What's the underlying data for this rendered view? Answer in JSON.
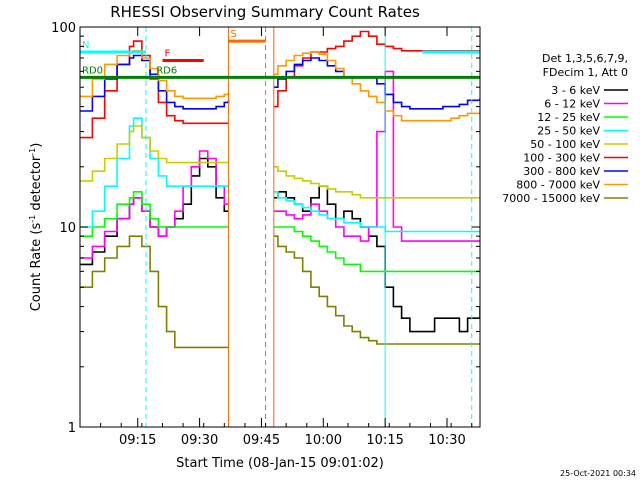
{
  "chart_data": {
    "type": "line",
    "title": "RHESSI Observing Summary Count Rates",
    "xlabel": "Start Time (08-Jan-15 09:01:02)",
    "ylabel": "Count Rate (s",
    "ylabel_sup": "-1",
    "ylabel_tail": " detector",
    "ylabel_close": ")",
    "yscale": "log",
    "ylim": [
      1,
      100
    ],
    "xlim_minutes": [
      0,
      97
    ],
    "x_ticks": [
      {
        "label": "09:15",
        "minute": 14
      },
      {
        "label": "09:30",
        "minute": 29
      },
      {
        "label": "09:45",
        "minute": 44
      },
      {
        "label": "10:00",
        "minute": 59
      },
      {
        "label": "10:15",
        "minute": 74
      },
      {
        "label": "10:30",
        "minute": 89
      }
    ],
    "y_ticks": [
      {
        "label": "1",
        "value": 1
      },
      {
        "label": "10",
        "value": 10
      },
      {
        "label": "100",
        "value": 100
      }
    ],
    "legend_header": [
      "Det 1,3,5,6,7,9,",
      "FDecim 1, Att 0"
    ],
    "data_gaps_minutes": [
      [
        36,
        47
      ]
    ],
    "series": [
      {
        "name": "3 - 6 keV",
        "color": "#000000",
        "x": [
          0,
          3,
          6,
          9,
          12,
          13,
          15,
          17,
          19,
          21,
          23,
          25,
          27,
          29,
          31,
          33,
          35,
          36,
          47,
          48,
          50,
          52,
          54,
          56,
          58,
          60,
          62,
          64,
          66,
          68,
          70,
          72,
          74,
          76,
          78,
          80,
          82,
          84,
          86,
          88,
          90,
          92,
          94,
          97
        ],
        "values": [
          6.5,
          7.5,
          9,
          11,
          13,
          14,
          12,
          10,
          9,
          10,
          11,
          13,
          18,
          22,
          20,
          14,
          12,
          12,
          14,
          15,
          14,
          13,
          12,
          14,
          16,
          13,
          11,
          12,
          11,
          10,
          9,
          8,
          5,
          4,
          3.5,
          3,
          3,
          3,
          3.5,
          3.5,
          3.5,
          3,
          3.5,
          4
        ]
      },
      {
        "name": "6 - 12 keV",
        "color": "#ff00ff",
        "x": [
          0,
          3,
          6,
          9,
          12,
          13,
          15,
          17,
          19,
          21,
          23,
          25,
          27,
          29,
          31,
          33,
          35,
          36,
          47,
          48,
          50,
          52,
          54,
          56,
          58,
          60,
          62,
          64,
          66,
          68,
          70,
          72,
          74,
          76,
          78,
          80,
          82,
          84,
          86,
          88,
          90,
          92,
          94,
          97
        ],
        "values": [
          7,
          8,
          9.5,
          11,
          13,
          14,
          12,
          10,
          9,
          10,
          12,
          16,
          20,
          24,
          22,
          16,
          13,
          13,
          12,
          12,
          11.5,
          11,
          11.5,
          13,
          12,
          11,
          10,
          9,
          9,
          8.5,
          10,
          30,
          60,
          10,
          8.5,
          8.5,
          8.5,
          8.5,
          8.5,
          8.5,
          8.5,
          8.5,
          8.5,
          8.5
        ]
      },
      {
        "name": "12 - 25 keV",
        "color": "#00ff00",
        "x": [
          0,
          3,
          6,
          9,
          12,
          13,
          15,
          17,
          19,
          21,
          23,
          25,
          27,
          29,
          31,
          33,
          35,
          36,
          47,
          48,
          50,
          52,
          54,
          56,
          58,
          60,
          62,
          64,
          66,
          68,
          70,
          72,
          74,
          76,
          78,
          80,
          82,
          84,
          86,
          88,
          90,
          92,
          94,
          97
        ],
        "values": [
          9,
          10,
          11,
          13,
          14,
          15,
          13,
          11,
          10,
          10,
          10,
          10,
          10,
          10,
          10,
          10,
          10,
          10,
          10,
          10,
          10,
          9.5,
          9,
          8.5,
          8,
          7.5,
          7,
          6.5,
          6.5,
          6,
          6,
          6,
          6,
          6,
          6,
          6,
          6,
          6,
          6,
          6,
          6,
          6,
          6,
          6
        ]
      },
      {
        "name": "25 - 50 keV",
        "color": "#00ffff",
        "x": [
          0,
          3,
          6,
          9,
          12,
          13,
          15,
          17,
          19,
          21,
          23,
          25,
          27,
          29,
          31,
          33,
          35,
          36,
          47,
          48,
          50,
          52,
          54,
          56,
          58,
          60,
          62,
          64,
          66,
          68,
          70,
          72,
          74,
          76,
          78,
          80,
          82,
          84,
          86,
          88,
          90,
          92,
          94,
          97
        ],
        "values": [
          10,
          12,
          16,
          22,
          32,
          35,
          28,
          22,
          18,
          16,
          16,
          16,
          16,
          16,
          16,
          16,
          16,
          16,
          15,
          14,
          13.5,
          13,
          12.5,
          12,
          11.5,
          11,
          11,
          10.5,
          10.5,
          10,
          10,
          10,
          9.5,
          9.5,
          9.5,
          9.5,
          9.5,
          9.5,
          9.5,
          9.5,
          9.5,
          9.5,
          9.5,
          9.5
        ]
      },
      {
        "name": "50 - 100 keV",
        "color": "#cccc00",
        "x": [
          0,
          3,
          6,
          9,
          12,
          13,
          15,
          17,
          19,
          21,
          23,
          25,
          27,
          29,
          31,
          33,
          35,
          36,
          47,
          48,
          50,
          52,
          54,
          56,
          58,
          60,
          62,
          64,
          66,
          68,
          70,
          72,
          74,
          76,
          78,
          80,
          82,
          84,
          86,
          88,
          90,
          92,
          94,
          97
        ],
        "values": [
          17,
          19,
          22,
          26,
          30,
          32,
          28,
          24,
          22,
          21,
          21,
          21,
          21,
          21,
          21,
          21,
          21,
          21,
          20,
          19,
          18,
          17.5,
          17,
          16.5,
          16,
          15.5,
          15,
          15,
          14.5,
          14,
          14,
          14,
          14,
          14,
          14,
          14,
          14,
          14,
          14,
          14,
          14,
          14,
          14,
          14
        ]
      },
      {
        "name": "100 - 300 keV",
        "color": "#ff0000",
        "x": [
          0,
          3,
          6,
          9,
          12,
          13,
          15,
          17,
          19,
          21,
          23,
          25,
          27,
          29,
          31,
          33,
          35,
          36,
          47,
          48,
          50,
          52,
          54,
          56,
          58,
          60,
          62,
          64,
          66,
          68,
          70,
          72,
          74,
          76,
          78,
          80,
          82,
          84,
          86,
          88,
          90,
          92,
          94,
          97
        ],
        "values": [
          28,
          35,
          48,
          65,
          80,
          85,
          72,
          55,
          42,
          36,
          34,
          33,
          33,
          33,
          33,
          33,
          33,
          33,
          40,
          48,
          56,
          64,
          70,
          75,
          75,
          78,
          80,
          85,
          90,
          95,
          90,
          82,
          80,
          78,
          76,
          76,
          76,
          76,
          76,
          76,
          76,
          76,
          76,
          76
        ]
      },
      {
        "name": "300 - 800 keV",
        "color": "#0000ff",
        "x": [
          0,
          3,
          6,
          9,
          12,
          13,
          15,
          17,
          19,
          21,
          23,
          25,
          27,
          29,
          31,
          33,
          35,
          36,
          47,
          48,
          50,
          52,
          54,
          56,
          58,
          60,
          62,
          64,
          66,
          68,
          70,
          72,
          74,
          76,
          78,
          80,
          82,
          84,
          86,
          88,
          90,
          92,
          94,
          97
        ],
        "values": [
          38,
          45,
          55,
          65,
          70,
          72,
          68,
          58,
          48,
          42,
          40,
          39,
          39,
          39,
          39,
          40,
          42,
          43,
          50,
          55,
          60,
          65,
          68,
          70,
          68,
          64,
          60,
          56,
          56,
          56,
          56,
          52,
          46,
          42,
          40,
          39,
          39,
          39,
          39,
          40,
          40,
          41,
          43,
          44
        ]
      },
      {
        "name": "800 - 7000 keV",
        "color": "#ff9900",
        "x": [
          0,
          3,
          6,
          9,
          12,
          13,
          15,
          17,
          19,
          21,
          23,
          25,
          27,
          29,
          31,
          33,
          35,
          36,
          47,
          48,
          50,
          52,
          54,
          56,
          58,
          60,
          62,
          64,
          66,
          68,
          70,
          72,
          74,
          76,
          78,
          80,
          82,
          84,
          86,
          88,
          90,
          92,
          94,
          97
        ],
        "values": [
          45,
          55,
          65,
          72,
          75,
          76,
          70,
          62,
          54,
          48,
          45,
          44,
          44,
          44,
          44,
          45,
          46,
          47,
          58,
          64,
          68,
          72,
          74,
          75,
          73,
          68,
          62,
          56,
          52,
          48,
          45,
          42,
          38,
          36,
          34,
          34,
          34,
          34,
          34,
          34,
          35,
          36,
          37,
          38
        ]
      },
      {
        "name": "7000 - 15000 keV",
        "color": "#808000",
        "x": [
          0,
          3,
          6,
          9,
          12,
          13,
          15,
          17,
          19,
          21,
          23,
          25,
          27,
          29,
          31,
          33,
          35,
          36,
          47,
          48,
          50,
          52,
          54,
          56,
          58,
          60,
          62,
          64,
          66,
          68,
          70,
          72,
          74,
          76,
          78,
          80,
          82,
          84,
          86,
          88,
          90,
          92,
          94,
          97
        ],
        "values": [
          5,
          6,
          7,
          8,
          9,
          9,
          8,
          6,
          4,
          3,
          2.5,
          2.5,
          2.5,
          2.5,
          2.5,
          2.5,
          2.5,
          2.5,
          9,
          8,
          7.5,
          7,
          6,
          5,
          4.5,
          4,
          3.6,
          3.2,
          3,
          2.8,
          2.7,
          2.6,
          2.6,
          2.6,
          2.6,
          2.6,
          2.6,
          2.6,
          2.6,
          2.6,
          2.6,
          2.6,
          2.6,
          2.6
        ]
      }
    ],
    "flags": [
      {
        "label": "N",
        "color": "#00ffff",
        "value": 75,
        "segments": [
          [
            0,
            16
          ],
          [
            83,
            97
          ]
        ]
      },
      {
        "label": "RD0",
        "color": "#008000",
        "value": 56,
        "segments": [
          [
            0,
            18
          ]
        ]
      },
      {
        "label": "RD6",
        "color": "#008000",
        "value": 56,
        "segments": [
          [
            18,
            97
          ]
        ]
      },
      {
        "label": "F",
        "color": "#ff0000",
        "value": 68,
        "segments": [
          [
            20,
            30
          ]
        ]
      },
      {
        "label": "S",
        "color": "#ff6600",
        "value": 85,
        "segments": [
          [
            36,
            45
          ]
        ]
      }
    ],
    "vertical_markers": [
      {
        "color": "#00ffff",
        "style": "dashed",
        "minute": 16
      },
      {
        "color": "#ff6600",
        "style": "solid",
        "minute": 36
      },
      {
        "color": "#ff6600",
        "style": "dashed",
        "minute": 45
      },
      {
        "color": "#ff6600",
        "style": "solid",
        "minute": 47
      },
      {
        "color": "#00ffff",
        "style": "solid",
        "minute": 74
      },
      {
        "color": "#00ffff",
        "style": "dashed",
        "minute": 95
      }
    ]
  },
  "footer_timestamp": "25-Oct-2021 00:34"
}
